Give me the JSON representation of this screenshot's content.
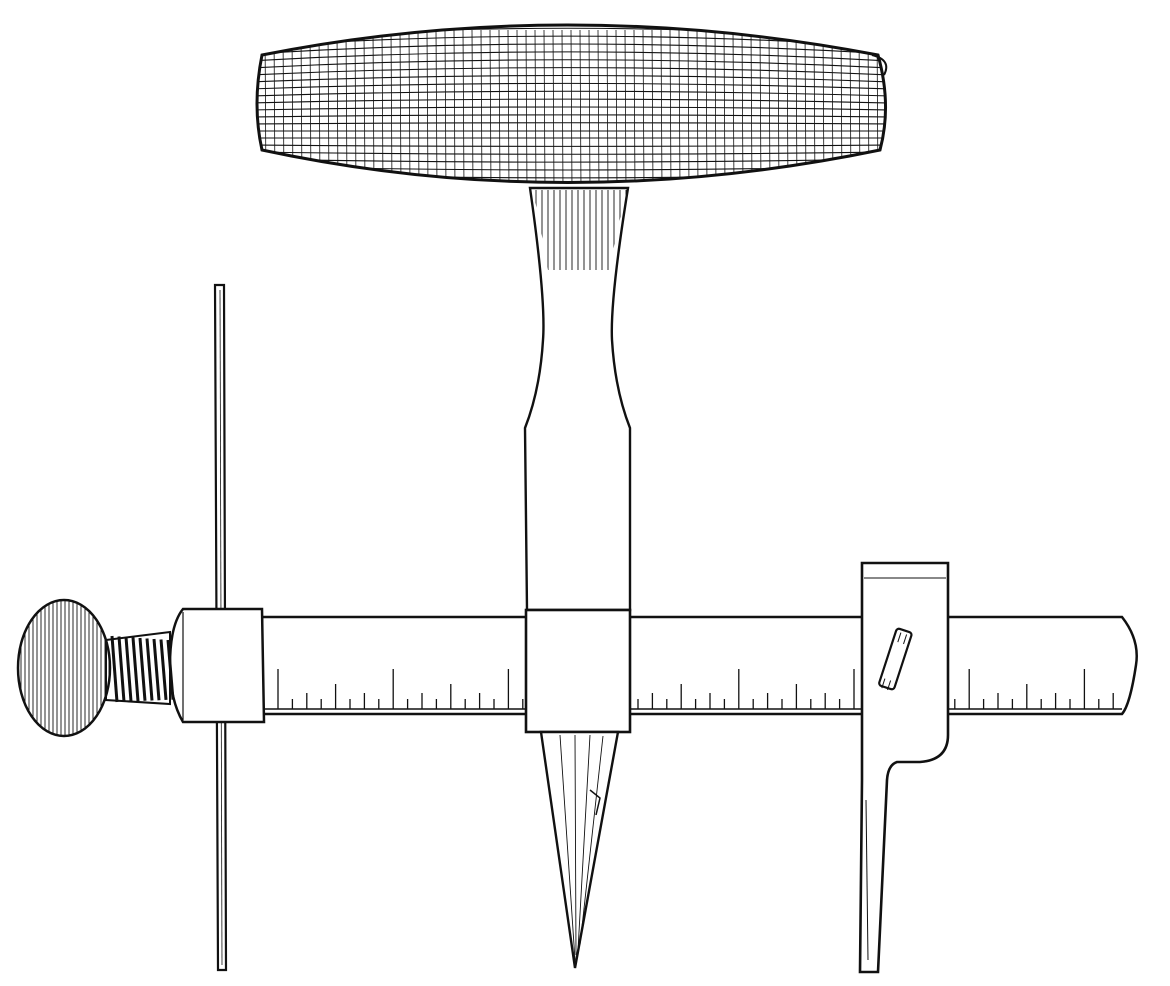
{
  "figure": {
    "parts": [
      {
        "name": "wooden-t-handle"
      },
      {
        "name": "tapered-shank"
      },
      {
        "name": "center-point"
      },
      {
        "name": "graduated-beam"
      },
      {
        "name": "end-clamp-block"
      },
      {
        "name": "thumb-screw"
      },
      {
        "name": "vertical-wire-rod"
      },
      {
        "name": "sliding-cutter-head"
      },
      {
        "name": "cutter-blade"
      }
    ],
    "colors": {
      "ink": "#111111",
      "paper": "#ffffff"
    }
  }
}
